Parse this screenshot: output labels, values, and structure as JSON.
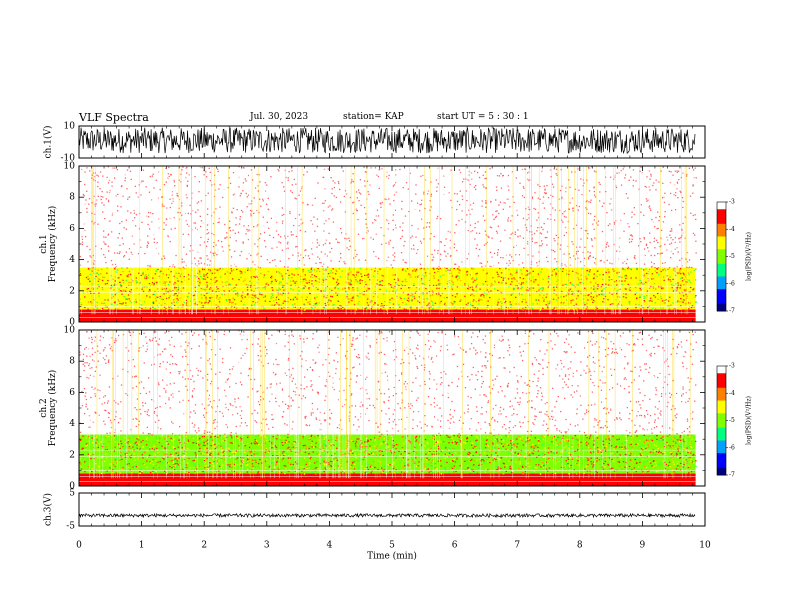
{
  "header": {
    "title": "VLF Spectra",
    "date": "Jul. 30, 2023",
    "station": "station= KAP",
    "start": "start UT =  5 : 30 : 1"
  },
  "chart_data": [
    {
      "type": "line",
      "panel": "ch1-waveform",
      "ylabel": "ch.1(V)",
      "ylim": [
        -10,
        10
      ],
      "yticks": [
        "10",
        "-10"
      ],
      "xlim": [
        0,
        10
      ],
      "x_data_end": 9.85,
      "y_range_observed": [
        -7,
        9
      ],
      "note_series": "dense noisy waveform"
    },
    {
      "type": "heatmap",
      "panel": "ch1-spectrogram",
      "ylabel": "ch.1\nFrequency (kHz)",
      "ylim": [
        0,
        10
      ],
      "yticks": [
        "0",
        "2",
        "4",
        "6",
        "8",
        "10"
      ],
      "xlim": [
        0,
        10
      ],
      "x_data_end": 9.85,
      "bands": [
        {
          "from": 0,
          "to": 0.8,
          "level": -3.6
        },
        {
          "from": 0.8,
          "to": 3.5,
          "level": -4.7
        },
        {
          "from": 3.5,
          "to": 10,
          "level": -3.2
        }
      ],
      "colorbar": {
        "label": "log(PSD)(V²/Hz)",
        "ticks": [
          "-3",
          "-4",
          "-5",
          "-6",
          "-7"
        ],
        "range": [
          -7,
          -3
        ]
      }
    },
    {
      "type": "heatmap",
      "panel": "ch2-spectrogram",
      "ylabel": "ch.2\nFrequency (kHz)",
      "ylim": [
        0,
        10
      ],
      "yticks": [
        "0",
        "2",
        "4",
        "6",
        "8",
        "10"
      ],
      "xlim": [
        0,
        10
      ],
      "x_data_end": 9.85,
      "bands": [
        {
          "from": 0,
          "to": 0.8,
          "level": -3.6
        },
        {
          "from": 0.8,
          "to": 3.3,
          "level": -4.8
        },
        {
          "from": 3.3,
          "to": 10,
          "level": -3.2
        }
      ],
      "colorbar": {
        "label": "log(PSD)(V²/Hz)",
        "ticks": [
          "-3",
          "-4",
          "-5",
          "-6",
          "-7"
        ],
        "range": [
          -7,
          -3
        ]
      }
    },
    {
      "type": "line",
      "panel": "ch3-waveform",
      "ylabel": "ch.3(V)",
      "ylim": [
        -5,
        5
      ],
      "yticks": [
        "5",
        "-5"
      ],
      "xlim": [
        0,
        10
      ],
      "x_data_end": 9.85,
      "y_range_observed": [
        -2.3,
        -1.3
      ],
      "xlabel": "Time (min)",
      "xticks": [
        "0",
        "1",
        "2",
        "3",
        "4",
        "5",
        "6",
        "7",
        "8",
        "9",
        "10"
      ]
    }
  ],
  "colors": {
    "axis": "#000000",
    "waveform": "#000000",
    "colormap": [
      "#000080",
      "#0000ff",
      "#00a0ff",
      "#00ff80",
      "#80ff00",
      "#ffff00",
      "#ff8000",
      "#ff0000",
      "#ffffff"
    ]
  }
}
